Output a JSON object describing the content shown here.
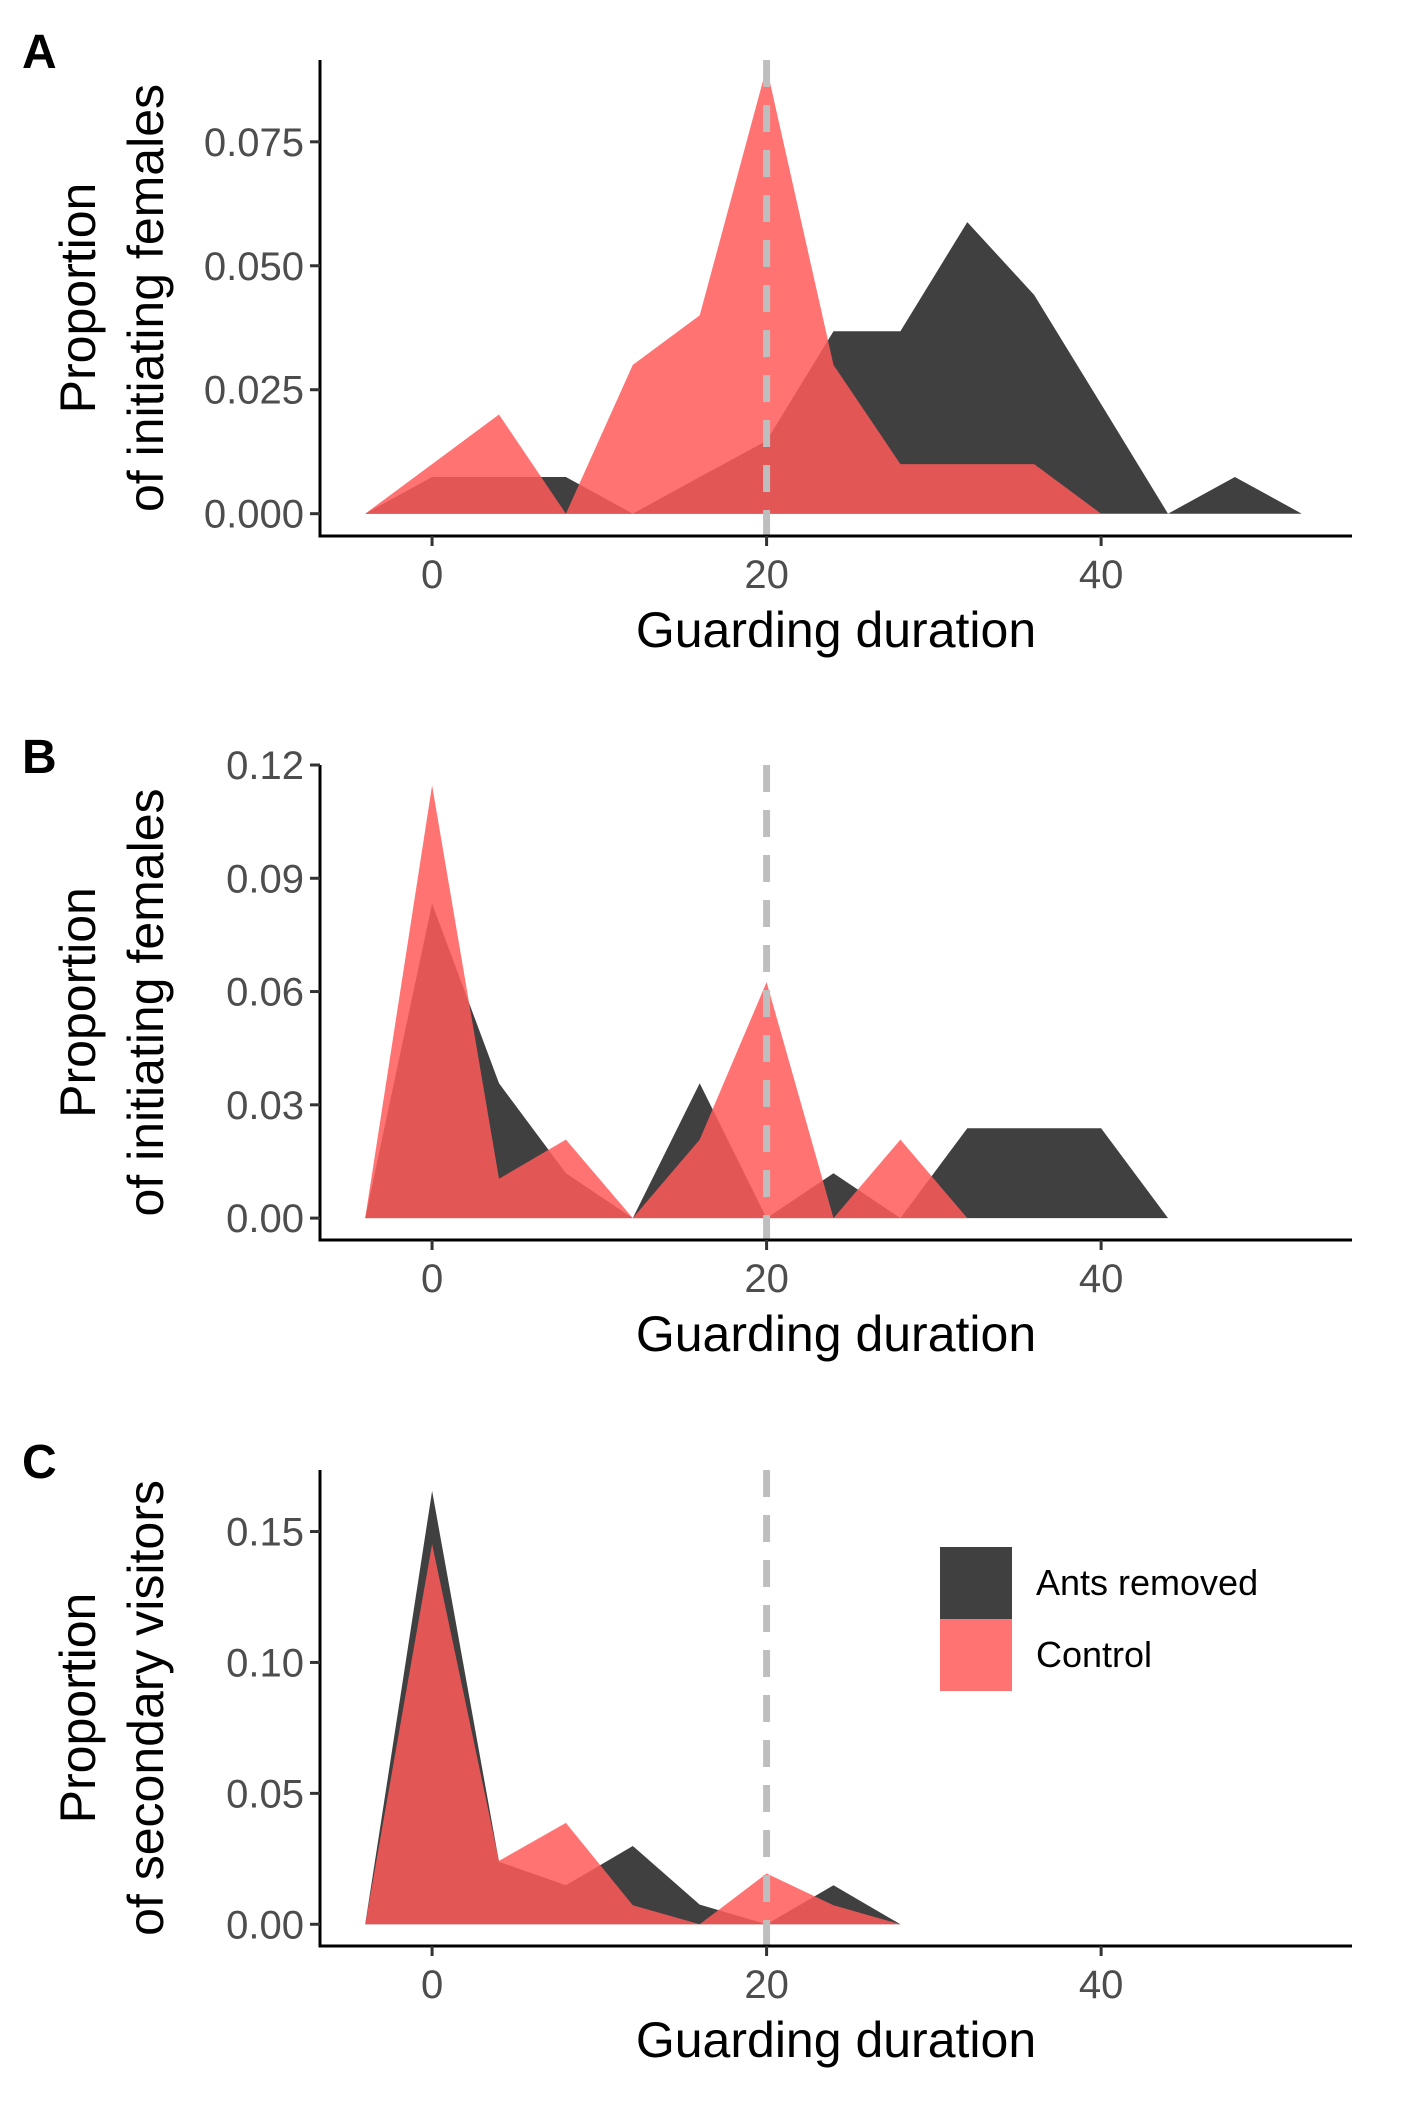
{
  "colors": {
    "ants_removed": "#262626",
    "control": "#ff5a5a",
    "ref_line": "#bebebe",
    "axis": "#000000",
    "tick_text": "#4d4d4d"
  },
  "chart_data": [
    {
      "type": "area",
      "panel_label": "A",
      "xlabel": "Guarding duration",
      "ylabel": [
        "Proportion",
        "of initiating females"
      ],
      "xlim": [
        -6.7,
        55
      ],
      "ylim": [
        -0.0045,
        0.0915
      ],
      "xticks": [
        0,
        20,
        40
      ],
      "yticks": [
        0,
        0.025,
        0.05,
        0.075
      ],
      "ytick_labels": [
        "0.000",
        "0.025",
        "0.050",
        "0.075"
      ],
      "ref_line_x": 20,
      "grid": false,
      "legend": false,
      "series": [
        {
          "name": "Ants removed",
          "color": "#262626",
          "x": [
            -4,
            0,
            4,
            8,
            12,
            16,
            20,
            24,
            28,
            32,
            36,
            40,
            44,
            48,
            52
          ],
          "y": [
            0,
            0.0074,
            0.0074,
            0.0074,
            0,
            0.0074,
            0.0147,
            0.0368,
            0.0368,
            0.0588,
            0.0441,
            0.0221,
            0,
            0.0074,
            0
          ]
        },
        {
          "name": "Control",
          "color": "#ff5a5a",
          "x": [
            -4,
            0,
            4,
            8,
            12,
            16,
            20,
            24,
            28,
            32,
            36,
            40
          ],
          "y": [
            0,
            0.01,
            0.02,
            0,
            0.03,
            0.04,
            0.09,
            0.03,
            0.01,
            0.01,
            0.01,
            0
          ]
        }
      ]
    },
    {
      "type": "area",
      "panel_label": "B",
      "xlabel": "Guarding duration",
      "ylabel": [
        "Proportion",
        "of initiating females"
      ],
      "xlim": [
        -6.7,
        55
      ],
      "ylim": [
        -0.0058,
        0.12
      ],
      "xticks": [
        0,
        20,
        40
      ],
      "yticks": [
        0,
        0.03,
        0.06,
        0.09,
        0.12
      ],
      "ytick_labels": [
        "0.00",
        "0.03",
        "0.06",
        "0.09",
        "0.12"
      ],
      "ref_line_x": 20,
      "grid": false,
      "legend": false,
      "series": [
        {
          "name": "Ants removed",
          "color": "#262626",
          "x": [
            -4,
            0,
            4,
            8,
            12,
            16,
            20,
            24,
            28,
            32,
            36,
            40,
            44
          ],
          "y": [
            0,
            0.0833,
            0.0357,
            0.0119,
            0,
            0.0357,
            0,
            0.0119,
            0,
            0.0238,
            0.0238,
            0.0238,
            0
          ]
        },
        {
          "name": "Control",
          "color": "#ff5a5a",
          "x": [
            -4,
            0,
            4,
            8,
            12,
            16,
            20,
            24,
            28,
            32
          ],
          "y": [
            0,
            0.1146,
            0.0104,
            0.0208,
            0,
            0.0208,
            0.0625,
            0,
            0.0208,
            0
          ]
        }
      ]
    },
    {
      "type": "area",
      "panel_label": "C",
      "xlabel": "Guarding duration",
      "ylabel": [
        "Proportion",
        "of secondary visitors"
      ],
      "xlim": [
        -6.7,
        55
      ],
      "ylim": [
        -0.0083,
        0.1735
      ],
      "xticks": [
        0,
        20,
        40
      ],
      "yticks": [
        0,
        0.05,
        0.1,
        0.15
      ],
      "ytick_labels": [
        "0.00",
        "0.05",
        "0.10",
        "0.15"
      ],
      "ref_line_x": 20,
      "grid": false,
      "legend": true,
      "legend_position": "top-right",
      "legend_entries": [
        "Ants removed",
        "Control"
      ],
      "series": [
        {
          "name": "Ants removed",
          "color": "#262626",
          "x": [
            -4,
            0,
            4,
            8,
            12,
            16,
            20,
            24,
            28
          ],
          "y": [
            0,
            0.1655,
            0.0239,
            0.0149,
            0.0299,
            0.0075,
            0,
            0.0149,
            0
          ]
        },
        {
          "name": "Control",
          "color": "#ff5a5a",
          "x": [
            -4,
            0,
            4,
            8,
            12,
            16,
            20,
            24,
            28
          ],
          "y": [
            0,
            0.1452,
            0.0242,
            0.0387,
            0.0073,
            0,
            0.0194,
            0.0073,
            0
          ]
        }
      ]
    }
  ]
}
